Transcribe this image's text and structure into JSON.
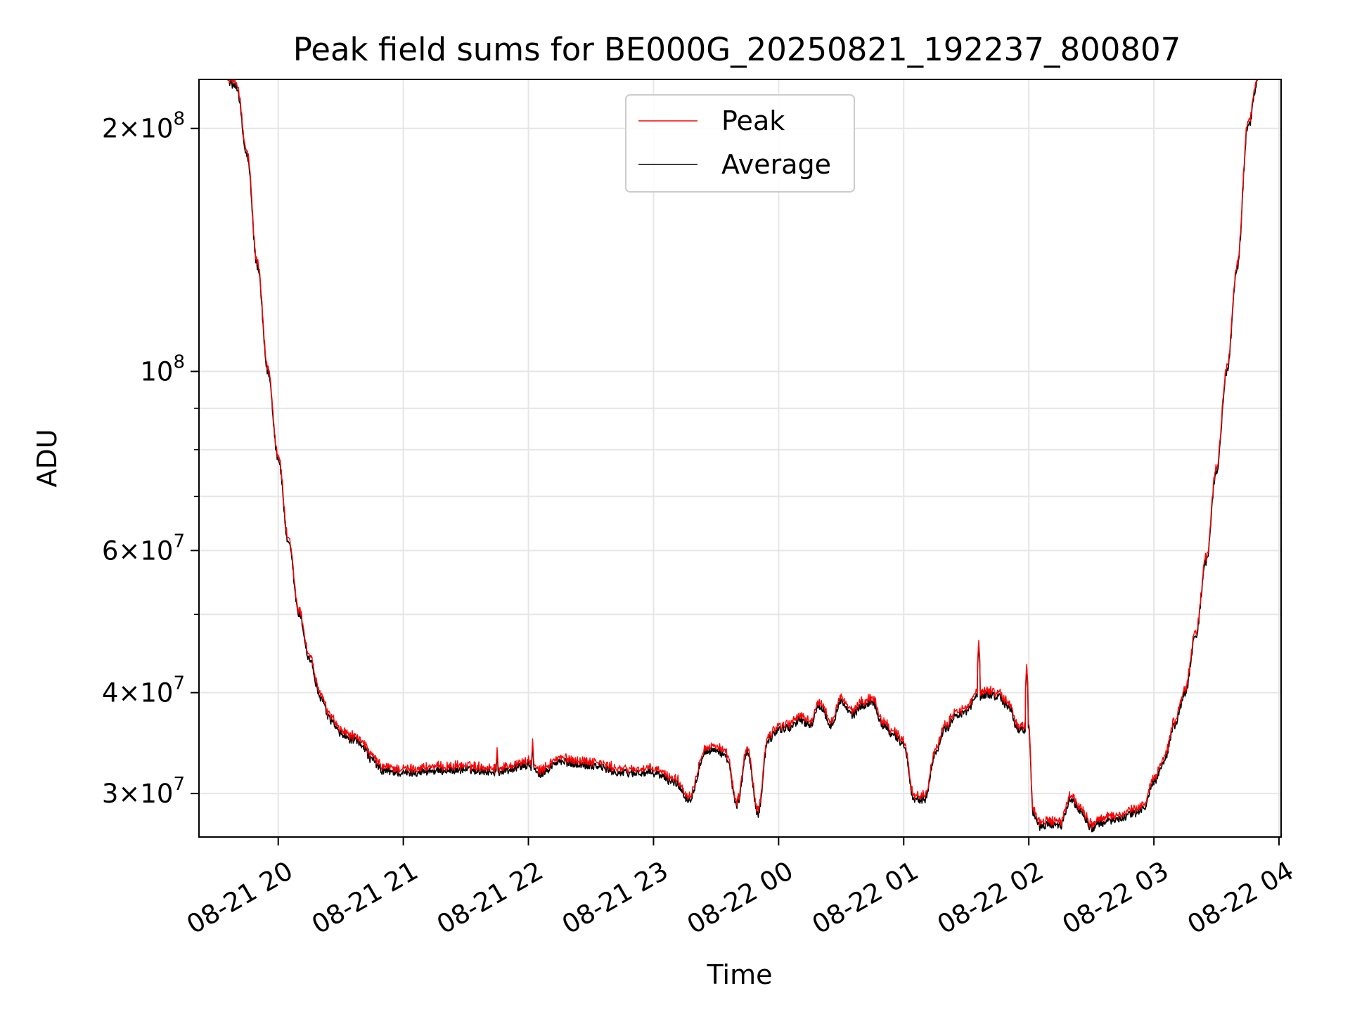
{
  "chart_data": {
    "type": "line",
    "title": "Peak field sums for BE000G_20250821_192237_800807",
    "xlabel": "Time",
    "ylabel": "ADU",
    "y_scale": "log",
    "ylim": [
      26500000,
      230000000
    ],
    "xlim": [
      "2025-08-21 19:22",
      "2025-08-22 04:01"
    ],
    "x_ticks": [
      "2025-08-21 20:00",
      "2025-08-21 21:00",
      "2025-08-21 22:00",
      "2025-08-21 23:00",
      "2025-08-22 00:00",
      "2025-08-22 01:00",
      "2025-08-22 02:00",
      "2025-08-22 03:00",
      "2025-08-22 04:00"
    ],
    "x_tick_labels": [
      "08-21 20",
      "08-21 21",
      "08-21 22",
      "08-21 23",
      "08-22 00",
      "08-22 01",
      "08-22 02",
      "08-22 03",
      "08-22 04"
    ],
    "y_ticks": [
      {
        "value": 30000000,
        "mantissa": "3",
        "exponent": "7"
      },
      {
        "value": 40000000,
        "mantissa": "4",
        "exponent": "7"
      },
      {
        "value": 60000000,
        "mantissa": "6",
        "exponent": "7"
      },
      {
        "value": 100000000,
        "mantissa": "",
        "exponent": "8"
      },
      {
        "value": 200000000,
        "mantissa": "2",
        "exponent": "8"
      }
    ],
    "y_minor_ticks": [
      50000000,
      70000000,
      80000000,
      90000000
    ],
    "grid": true,
    "legend_position": "top-center",
    "series": [
      {
        "name": "Peak",
        "color": "#ff0000",
        "peak_offset": 1.012
      },
      {
        "name": "Average",
        "color": "#000000"
      }
    ],
    "x": [
      "2025-08-21 19:35",
      "2025-08-21 19:40",
      "2025-08-21 19:45",
      "2025-08-21 19:50",
      "2025-08-21 19:55",
      "2025-08-21 20:00",
      "2025-08-21 20:05",
      "2025-08-21 20:10",
      "2025-08-21 20:15",
      "2025-08-21 20:20",
      "2025-08-21 20:25",
      "2025-08-21 20:30",
      "2025-08-21 20:35",
      "2025-08-21 20:40",
      "2025-08-21 20:45",
      "2025-08-21 20:50",
      "2025-08-21 21:00",
      "2025-08-21 21:15",
      "2025-08-21 21:30",
      "2025-08-21 21:45",
      "2025-08-21 22:00",
      "2025-08-21 22:05",
      "2025-08-21 22:15",
      "2025-08-21 22:30",
      "2025-08-21 22:45",
      "2025-08-21 23:00",
      "2025-08-21 23:10",
      "2025-08-21 23:17",
      "2025-08-21 23:25",
      "2025-08-21 23:30",
      "2025-08-21 23:35",
      "2025-08-21 23:40",
      "2025-08-21 23:45",
      "2025-08-21 23:50",
      "2025-08-21 23:55",
      "2025-08-22 00:00",
      "2025-08-22 00:05",
      "2025-08-22 00:10",
      "2025-08-22 00:15",
      "2025-08-22 00:20",
      "2025-08-22 00:25",
      "2025-08-22 00:30",
      "2025-08-22 00:35",
      "2025-08-22 00:40",
      "2025-08-22 00:45",
      "2025-08-22 00:50",
      "2025-08-22 00:55",
      "2025-08-22 01:00",
      "2025-08-22 01:05",
      "2025-08-22 01:10",
      "2025-08-22 01:15",
      "2025-08-22 01:20",
      "2025-08-22 01:25",
      "2025-08-22 01:30",
      "2025-08-22 01:35",
      "2025-08-22 01:40",
      "2025-08-22 01:45",
      "2025-08-22 01:50",
      "2025-08-22 01:55",
      "2025-08-22 02:00",
      "2025-08-22 02:02",
      "2025-08-22 02:05",
      "2025-08-22 02:10",
      "2025-08-22 02:15",
      "2025-08-22 02:20",
      "2025-08-22 02:25",
      "2025-08-22 02:30",
      "2025-08-22 02:35",
      "2025-08-22 02:40",
      "2025-08-22 02:45",
      "2025-08-22 02:50",
      "2025-08-22 02:55",
      "2025-08-22 03:00",
      "2025-08-22 03:05",
      "2025-08-22 03:10",
      "2025-08-22 03:15",
      "2025-08-22 03:20",
      "2025-08-22 03:25",
      "2025-08-22 03:30",
      "2025-08-22 03:35",
      "2025-08-22 03:40",
      "2025-08-22 03:45",
      "2025-08-22 03:50"
    ],
    "values": [
      230000000,
      225000000,
      185000000,
      135000000,
      100000000,
      78000000,
      61000000,
      50000000,
      44000000,
      39500000,
      37000000,
      35500000,
      35000000,
      34500000,
      33000000,
      32000000,
      31800000,
      32000000,
      32100000,
      31900000,
      32500000,
      31700000,
      32800000,
      32500000,
      31800000,
      31800000,
      31000000,
      29500000,
      33800000,
      34000000,
      33200000,
      29000000,
      33800000,
      28300000,
      35000000,
      36000000,
      36200000,
      37000000,
      36500000,
      38500000,
      36500000,
      39000000,
      37500000,
      38500000,
      39000000,
      36500000,
      35500000,
      34500000,
      29500000,
      29500000,
      33500000,
      36000000,
      37500000,
      37800000,
      39500000,
      39800000,
      39600000,
      38500000,
      36000000,
      36000000,
      28500000,
      27300000,
      27500000,
      27300000,
      29500000,
      28500000,
      27200000,
      27600000,
      27800000,
      28000000,
      28300000,
      28700000,
      31000000,
      33000000,
      36500000,
      40000000,
      47000000,
      58000000,
      75000000,
      100000000,
      135000000,
      200000000,
      230000000
    ],
    "spikes": [
      {
        "x": "2025-08-21 21:45",
        "value": 33800000
      },
      {
        "x": "2025-08-21 22:02",
        "value": 34600000
      },
      {
        "x": "2025-08-22 01:36",
        "value": 46000000
      },
      {
        "x": "2025-08-22 01:59",
        "value": 43000000
      }
    ]
  }
}
